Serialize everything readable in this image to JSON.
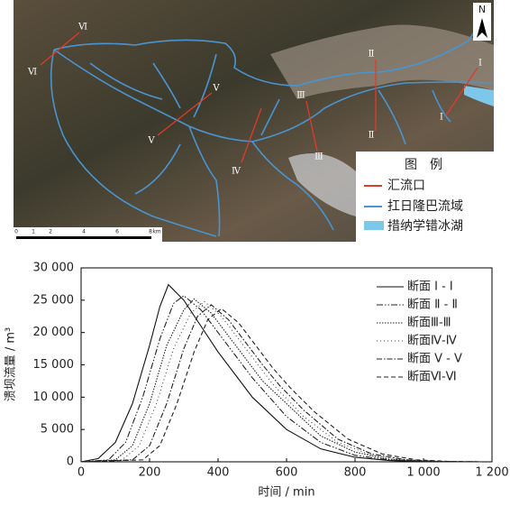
{
  "map": {
    "north": "N",
    "section_labels": [
      "Ⅵ",
      "Ⅵ",
      "Ⅴ",
      "Ⅴ",
      "Ⅳ",
      "Ⅲ",
      "Ⅲ",
      "Ⅱ",
      "Ⅱ",
      "Ⅰ",
      "Ⅰ"
    ],
    "scale": [
      "0",
      "1",
      "2",
      "4",
      "6",
      "8",
      "km"
    ],
    "legend_title": "图　例",
    "legend": [
      "汇流口",
      "扛日隆巴流域",
      "措纳学错冰湖"
    ]
  },
  "chart_data": {
    "type": "line",
    "y_label": "溃坝流量 / m³",
    "x_label": "时间 / min",
    "xlim": [
      0,
      1200
    ],
    "xticks": [
      0,
      200,
      400,
      600,
      800,
      {
        "value": 1000,
        "label": "1 000"
      },
      {
        "value": 1200,
        "label": "1 200"
      }
    ],
    "ylim": [
      0,
      30000
    ],
    "yticks": [
      0,
      {
        "value": 5000,
        "label": "5 000"
      },
      {
        "value": 10000,
        "label": "10 000"
      },
      {
        "value": 15000,
        "label": "15 000"
      },
      {
        "value": 20000,
        "label": "20 000"
      },
      {
        "value": 25000,
        "label": "25 000"
      },
      {
        "value": 30000,
        "label": "30 000"
      }
    ],
    "series": [
      {
        "name": "断面 Ⅰ - Ⅰ",
        "color": "#111111",
        "dash": "none",
        "x": [
          0,
          50,
          100,
          150,
          200,
          230,
          255,
          300,
          350,
          400,
          450,
          500,
          600,
          700,
          800,
          900,
          1000,
          1100,
          1170
        ],
        "values": [
          0,
          500,
          3000,
          9000,
          18000,
          24000,
          27400,
          25000,
          21000,
          17000,
          13500,
          10000,
          5000,
          2000,
          700,
          200,
          50,
          0,
          0
        ]
      },
      {
        "name": "断面 Ⅱ - Ⅱ",
        "color": "#222222",
        "dash": "7 2 1.5 2 1.5 2",
        "x": [
          0,
          80,
          130,
          180,
          230,
          270,
          300,
          350,
          400,
          450,
          500,
          600,
          700,
          800,
          900,
          1000,
          1100,
          1170
        ],
        "values": [
          0,
          300,
          3000,
          10000,
          19000,
          24500,
          25700,
          23500,
          20000,
          16500,
          13000,
          7000,
          3000,
          1000,
          300,
          80,
          10,
          0
        ]
      },
      {
        "name": "断面Ⅲ-Ⅲ",
        "color": "#222222",
        "dash": "1.5 1.5",
        "x": [
          0,
          100,
          150,
          200,
          250,
          300,
          330,
          380,
          430,
          480,
          530,
          600,
          700,
          800,
          900,
          1000,
          1100,
          1170
        ],
        "values": [
          0,
          300,
          2500,
          9000,
          18000,
          23500,
          25200,
          23000,
          19500,
          16000,
          12500,
          9000,
          4000,
          1500,
          400,
          100,
          20,
          0
        ]
      },
      {
        "name": "断面Ⅳ-Ⅳ",
        "color": "#444444",
        "dash": "1 3",
        "x": [
          0,
          120,
          170,
          220,
          270,
          320,
          360,
          410,
          460,
          510,
          560,
          650,
          750,
          850,
          950,
          1050,
          1170
        ],
        "values": [
          0,
          300,
          2500,
          9000,
          17500,
          23000,
          24800,
          22500,
          19000,
          15500,
          12000,
          7000,
          3000,
          1000,
          250,
          50,
          0
        ]
      },
      {
        "name": "断面 Ⅴ - Ⅴ",
        "color": "#222222",
        "dash": "6 2 1.5 2",
        "x": [
          0,
          150,
          200,
          250,
          300,
          340,
          380,
          430,
          480,
          530,
          580,
          650,
          750,
          850,
          950,
          1050,
          1170
        ],
        "values": [
          0,
          300,
          2500,
          9000,
          17500,
          22500,
          24300,
          22000,
          18500,
          15000,
          11800,
          8000,
          3500,
          1200,
          300,
          60,
          0
        ]
      },
      {
        "name": "断面Ⅵ-Ⅵ",
        "color": "#222222",
        "dash": "5 3",
        "x": [
          0,
          180,
          230,
          280,
          330,
          370,
          410,
          460,
          510,
          560,
          610,
          680,
          780,
          880,
          980,
          1080,
          1170
        ],
        "values": [
          0,
          300,
          2500,
          9000,
          17000,
          22000,
          23700,
          21500,
          18000,
          14500,
          11500,
          7800,
          3500,
          1200,
          300,
          50,
          0
        ]
      }
    ]
  }
}
